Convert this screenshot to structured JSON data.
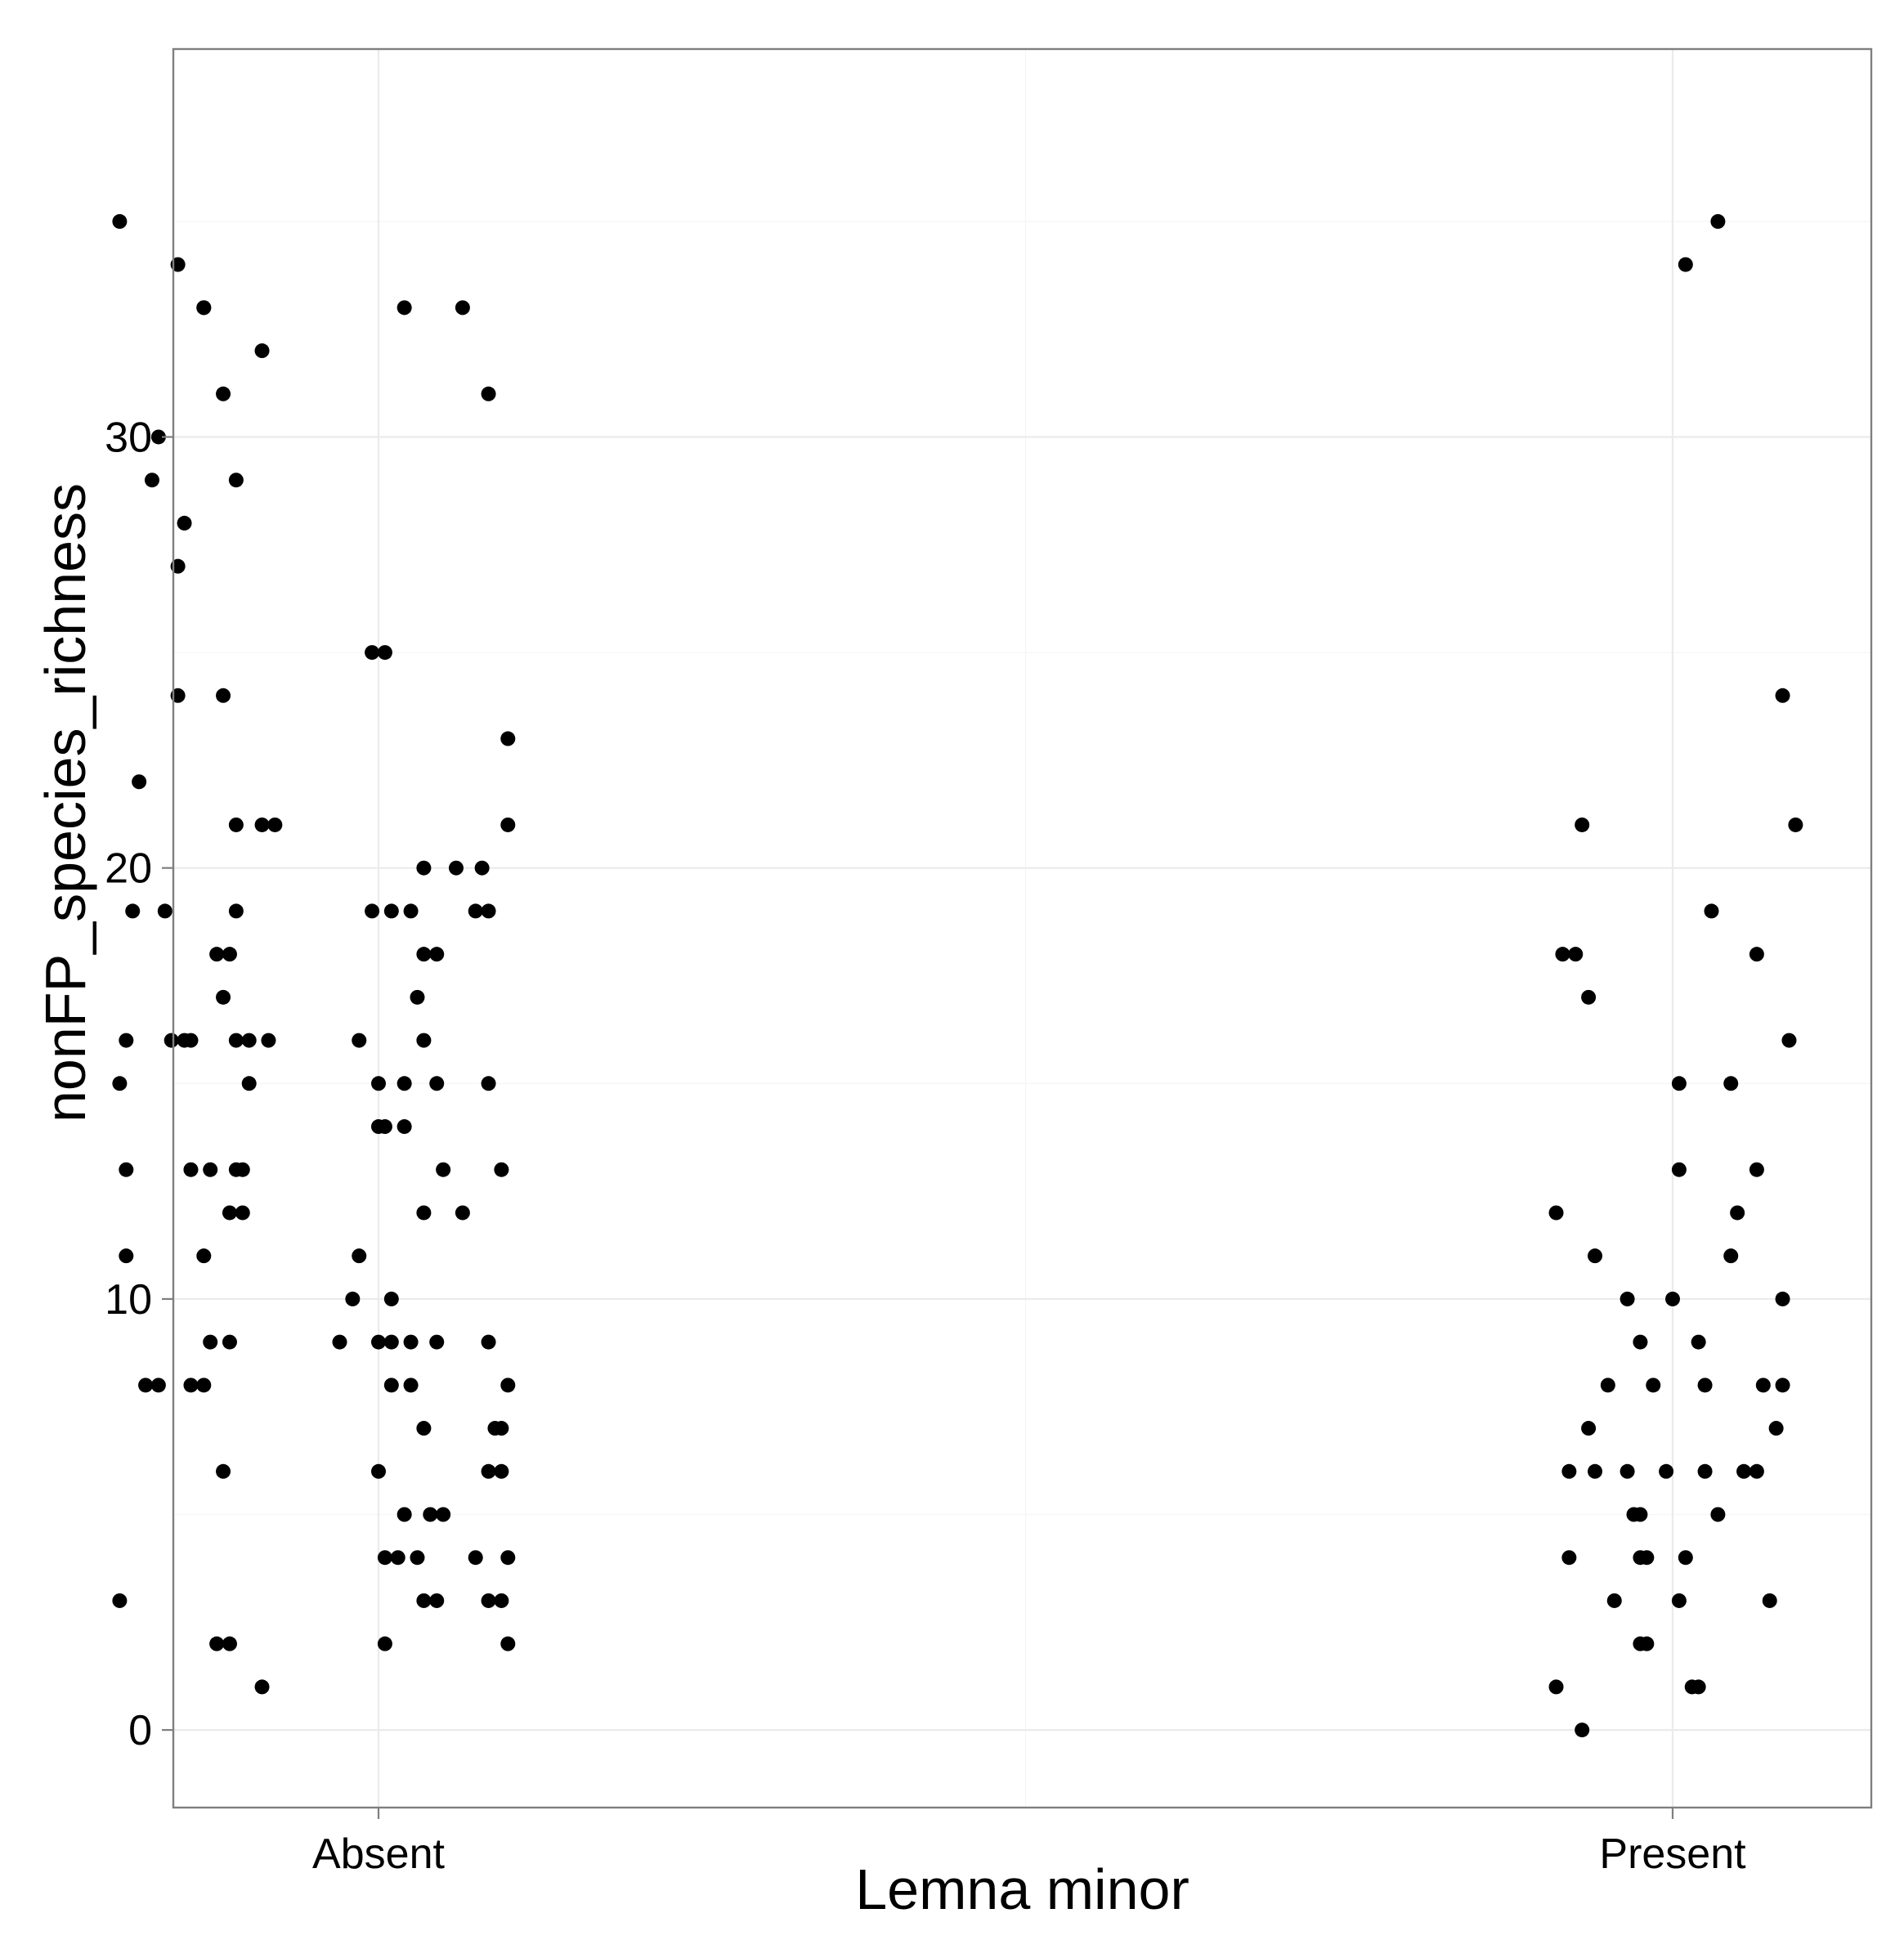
{
  "chart_data": {
    "type": "scatter",
    "title": "",
    "xlabel": "Lemna minor",
    "ylabel": "nonFP_species_richness",
    "categories": [
      "Absent",
      "Present"
    ],
    "yticks": [
      0,
      10,
      20,
      30
    ],
    "ylim": [
      -1.8,
      39
    ],
    "grid": true,
    "legend": "none",
    "point_color": "#000000",
    "series": [
      {
        "category": "Absent",
        "points": [
          {
            "x": -0.2,
            "y": 35
          },
          {
            "x": -0.155,
            "y": 34
          },
          {
            "x": -0.135,
            "y": 33
          },
          {
            "x": 0.02,
            "y": 33
          },
          {
            "x": 0.065,
            "y": 33
          },
          {
            "x": -0.17,
            "y": 30
          },
          {
            "x": -0.175,
            "y": 29
          },
          {
            "x": -0.135,
            "y": 33
          },
          {
            "x": -0.12,
            "y": 31
          },
          {
            "x": -0.11,
            "y": 29
          },
          {
            "x": -0.09,
            "y": 32
          },
          {
            "x": 0.085,
            "y": 31
          },
          {
            "x": -0.15,
            "y": 28
          },
          {
            "x": -0.155,
            "y": 27
          },
          {
            "x": -0.005,
            "y": 25
          },
          {
            "x": 0.005,
            "y": 25
          },
          {
            "x": -0.155,
            "y": 24
          },
          {
            "x": -0.12,
            "y": 24
          },
          {
            "x": 0.1,
            "y": 23
          },
          {
            "x": -0.185,
            "y": 22
          },
          {
            "x": -0.11,
            "y": 21
          },
          {
            "x": -0.09,
            "y": 21
          },
          {
            "x": -0.08,
            "y": 21
          },
          {
            "x": 0.1,
            "y": 21
          },
          {
            "x": 0.035,
            "y": 20
          },
          {
            "x": 0.06,
            "y": 20
          },
          {
            "x": 0.08,
            "y": 20
          },
          {
            "x": -0.19,
            "y": 19
          },
          {
            "x": -0.165,
            "y": 19
          },
          {
            "x": -0.11,
            "y": 19
          },
          {
            "x": -0.005,
            "y": 19
          },
          {
            "x": 0.01,
            "y": 19
          },
          {
            "x": 0.025,
            "y": 19
          },
          {
            "x": 0.075,
            "y": 19
          },
          {
            "x": 0.085,
            "y": 19
          },
          {
            "x": -0.125,
            "y": 18
          },
          {
            "x": -0.115,
            "y": 18
          },
          {
            "x": 0.035,
            "y": 18
          },
          {
            "x": 0.045,
            "y": 18
          },
          {
            "x": -0.12,
            "y": 17
          },
          {
            "x": 0.03,
            "y": 17
          },
          {
            "x": -0.195,
            "y": 16
          },
          {
            "x": -0.16,
            "y": 16
          },
          {
            "x": -0.15,
            "y": 16
          },
          {
            "x": -0.145,
            "y": 16
          },
          {
            "x": -0.11,
            "y": 16
          },
          {
            "x": -0.1,
            "y": 16
          },
          {
            "x": -0.085,
            "y": 16
          },
          {
            "x": -0.015,
            "y": 16
          },
          {
            "x": 0.035,
            "y": 16
          },
          {
            "x": -0.2,
            "y": 15
          },
          {
            "x": -0.1,
            "y": 15
          },
          {
            "x": 0.0,
            "y": 15
          },
          {
            "x": 0.02,
            "y": 15
          },
          {
            "x": 0.045,
            "y": 15
          },
          {
            "x": 0.085,
            "y": 15
          },
          {
            "x": 0.0,
            "y": 14
          },
          {
            "x": 0.005,
            "y": 14
          },
          {
            "x": 0.02,
            "y": 14
          },
          {
            "x": -0.195,
            "y": 13
          },
          {
            "x": -0.145,
            "y": 13
          },
          {
            "x": -0.13,
            "y": 13
          },
          {
            "x": -0.11,
            "y": 13
          },
          {
            "x": -0.105,
            "y": 13
          },
          {
            "x": 0.05,
            "y": 13
          },
          {
            "x": 0.095,
            "y": 13
          },
          {
            "x": -0.115,
            "y": 12
          },
          {
            "x": -0.105,
            "y": 12
          },
          {
            "x": 0.035,
            "y": 12
          },
          {
            "x": 0.065,
            "y": 12
          },
          {
            "x": -0.195,
            "y": 11
          },
          {
            "x": -0.135,
            "y": 11
          },
          {
            "x": -0.015,
            "y": 11
          },
          {
            "x": -0.02,
            "y": 10
          },
          {
            "x": 0.01,
            "y": 10
          },
          {
            "x": -0.13,
            "y": 9
          },
          {
            "x": -0.115,
            "y": 9
          },
          {
            "x": -0.03,
            "y": 9
          },
          {
            "x": 0.0,
            "y": 9
          },
          {
            "x": 0.01,
            "y": 9
          },
          {
            "x": 0.025,
            "y": 9
          },
          {
            "x": 0.045,
            "y": 9
          },
          {
            "x": 0.085,
            "y": 9
          },
          {
            "x": -0.18,
            "y": 8
          },
          {
            "x": -0.17,
            "y": 8
          },
          {
            "x": -0.145,
            "y": 8
          },
          {
            "x": -0.135,
            "y": 8
          },
          {
            "x": 0.01,
            "y": 8
          },
          {
            "x": 0.025,
            "y": 8
          },
          {
            "x": 0.1,
            "y": 8
          },
          {
            "x": 0.035,
            "y": 7
          },
          {
            "x": 0.09,
            "y": 7
          },
          {
            "x": 0.095,
            "y": 7
          },
          {
            "x": -0.12,
            "y": 6
          },
          {
            "x": 0.0,
            "y": 6
          },
          {
            "x": 0.085,
            "y": 6
          },
          {
            "x": 0.095,
            "y": 6
          },
          {
            "x": 0.02,
            "y": 5
          },
          {
            "x": 0.04,
            "y": 5
          },
          {
            "x": 0.05,
            "y": 5
          },
          {
            "x": 0.005,
            "y": 4
          },
          {
            "x": 0.015,
            "y": 4
          },
          {
            "x": 0.03,
            "y": 4
          },
          {
            "x": 0.075,
            "y": 4
          },
          {
            "x": 0.1,
            "y": 4
          },
          {
            "x": -0.2,
            "y": 3
          },
          {
            "x": 0.035,
            "y": 3
          },
          {
            "x": 0.045,
            "y": 3
          },
          {
            "x": 0.085,
            "y": 3
          },
          {
            "x": 0.095,
            "y": 3
          },
          {
            "x": -0.125,
            "y": 2
          },
          {
            "x": -0.115,
            "y": 2
          },
          {
            "x": 0.005,
            "y": 2
          },
          {
            "x": 0.1,
            "y": 2
          },
          {
            "x": -0.09,
            "y": 1
          }
        ]
      },
      {
        "category": "Present",
        "points": [
          {
            "x": 0.035,
            "y": 35
          },
          {
            "x": 0.01,
            "y": 34
          },
          {
            "x": 0.085,
            "y": 24
          },
          {
            "x": -0.07,
            "y": 21
          },
          {
            "x": 0.095,
            "y": 21
          },
          {
            "x": 0.03,
            "y": 19
          },
          {
            "x": -0.085,
            "y": 18
          },
          {
            "x": -0.075,
            "y": 18
          },
          {
            "x": 0.065,
            "y": 18
          },
          {
            "x": -0.065,
            "y": 17
          },
          {
            "x": 0.09,
            "y": 16
          },
          {
            "x": 0.005,
            "y": 15
          },
          {
            "x": 0.045,
            "y": 15
          },
          {
            "x": 0.005,
            "y": 13
          },
          {
            "x": 0.065,
            "y": 13
          },
          {
            "x": -0.09,
            "y": 12
          },
          {
            "x": 0.05,
            "y": 12
          },
          {
            "x": -0.06,
            "y": 11
          },
          {
            "x": 0.045,
            "y": 11
          },
          {
            "x": -0.035,
            "y": 10
          },
          {
            "x": 0.0,
            "y": 10
          },
          {
            "x": 0.085,
            "y": 10
          },
          {
            "x": -0.025,
            "y": 9
          },
          {
            "x": 0.02,
            "y": 9
          },
          {
            "x": -0.05,
            "y": 8
          },
          {
            "x": -0.015,
            "y": 8
          },
          {
            "x": 0.025,
            "y": 8
          },
          {
            "x": 0.07,
            "y": 8
          },
          {
            "x": 0.085,
            "y": 8
          },
          {
            "x": -0.065,
            "y": 7
          },
          {
            "x": 0.08,
            "y": 7
          },
          {
            "x": -0.08,
            "y": 6
          },
          {
            "x": -0.06,
            "y": 6
          },
          {
            "x": -0.035,
            "y": 6
          },
          {
            "x": -0.005,
            "y": 6
          },
          {
            "x": 0.025,
            "y": 6
          },
          {
            "x": 0.055,
            "y": 6
          },
          {
            "x": 0.065,
            "y": 6
          },
          {
            "x": -0.03,
            "y": 5
          },
          {
            "x": -0.025,
            "y": 5
          },
          {
            "x": 0.035,
            "y": 5
          },
          {
            "x": -0.025,
            "y": 4
          },
          {
            "x": -0.02,
            "y": 4
          },
          {
            "x": 0.01,
            "y": 4
          },
          {
            "x": -0.08,
            "y": 4
          },
          {
            "x": -0.045,
            "y": 3
          },
          {
            "x": 0.005,
            "y": 3
          },
          {
            "x": 0.075,
            "y": 3
          },
          {
            "x": -0.025,
            "y": 2
          },
          {
            "x": -0.02,
            "y": 2
          },
          {
            "x": 0.015,
            "y": 1
          },
          {
            "x": 0.02,
            "y": 1
          },
          {
            "x": -0.09,
            "y": 1
          },
          {
            "x": -0.07,
            "y": 0
          }
        ]
      }
    ]
  }
}
